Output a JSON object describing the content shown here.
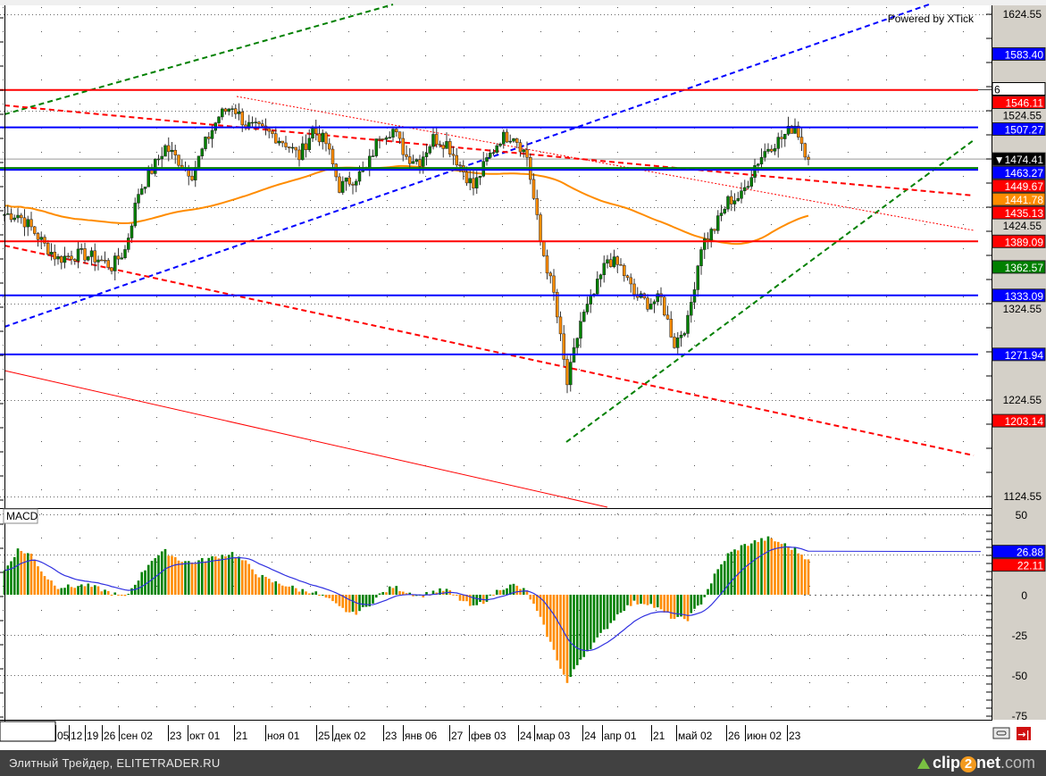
{
  "watermark": "Powered by XTick",
  "macd_label": "MACD",
  "footer": {
    "left": "Элитный Трейдер, ELITETRADER.RU",
    "brand_a": "clip",
    "brand_b": "2",
    "brand_c": "net",
    "brand_d": ".com"
  },
  "colors": {
    "up": "#008000",
    "down": "#ff8c00",
    "blue": "#0000ff",
    "red": "#ff0000",
    "green": "#008000",
    "orange": "#ff8c00",
    "axis_bg": "#d4d0c8",
    "footer_bg": "#414141"
  },
  "chart_data": [
    {
      "type": "candlestick",
      "title": "",
      "ylim": [
        1105,
        1640
      ],
      "y_ticks": [
        "1624.55",
        "1524.55",
        "1424.55",
        "1324.55",
        "1224.55",
        "1124.55"
      ],
      "x_tick_labels": [
        "05",
        "12",
        "19",
        "26",
        "сен 02",
        "23",
        "окт 01",
        "21",
        "ноя 01",
        "25",
        "дек 02",
        "23",
        "янв 06",
        "27",
        "фев 03",
        "24",
        "мар 03",
        "24",
        "апр 01",
        "21",
        "май 02",
        "26",
        "июн 02",
        "23"
      ],
      "closes_weekly": [
        1417,
        1417,
        1403,
        1385,
        1371,
        1375,
        1375,
        1371,
        1363,
        1380,
        1440,
        1463,
        1487,
        1473,
        1459,
        1491,
        1519,
        1530,
        1510,
        1505,
        1500,
        1491,
        1477,
        1505,
        1491,
        1445,
        1454,
        1463,
        1500,
        1505,
        1477,
        1473,
        1496,
        1491,
        1468,
        1445,
        1473,
        1496,
        1500,
        1477,
        1389,
        1334,
        1241,
        1306,
        1334,
        1371,
        1362,
        1334,
        1325,
        1329,
        1283,
        1306,
        1385,
        1403,
        1431,
        1436,
        1468,
        1487,
        1496,
        1510,
        1474
      ],
      "level_lines": [
        {
          "value": 1583.4,
          "label": "1583.40",
          "color": "#0000ff",
          "line": false
        },
        {
          "value": 1546.11,
          "label": "1546.11",
          "color": "#ff0000",
          "line": true
        },
        {
          "value": 1507.27,
          "label": "1507.27",
          "color": "#0000ff",
          "line": true
        },
        {
          "value": 1474.41,
          "label": "▼1474.41",
          "color": "#000000",
          "line": false
        },
        {
          "value": 1463.27,
          "label": "1463.27",
          "color": "#0000ff",
          "line": true
        },
        {
          "value": 1449.67,
          "label": "1449.67",
          "color": "#ff0000",
          "line": false
        },
        {
          "value": 1435.13,
          "label": "1435.13",
          "color": "#ff0000",
          "line": false
        },
        {
          "value": 1441.78,
          "label": "1441.78",
          "color": "#ff8c00",
          "line": false
        },
        {
          "value": 1389.09,
          "label": "1389.09",
          "color": "#ff0000",
          "line": true
        },
        {
          "value": 1362.57,
          "label": "1362.57",
          "color": "#008000",
          "line": false
        },
        {
          "value": 1333.09,
          "label": "1333.09",
          "color": "#0000ff",
          "line": true
        },
        {
          "value": 1271.94,
          "label": "1271.94",
          "color": "#0000ff",
          "line": true
        },
        {
          "value": 1203.14,
          "label": "1203.14",
          "color": "#ff0000",
          "line": false
        }
      ],
      "cursor_label": "6"
    },
    {
      "type": "bar",
      "title": "MACD",
      "ylim": [
        -78,
        56
      ],
      "y_ticks": [
        "50",
        "0",
        "-25",
        "-50",
        "-75"
      ],
      "histogram_weekly": [
        15,
        28,
        25,
        12,
        5,
        5,
        6,
        4,
        1,
        -2,
        10,
        22,
        27,
        22,
        20,
        22,
        24,
        26,
        20,
        12,
        8,
        6,
        3,
        2,
        -2,
        -8,
        -12,
        -8,
        0,
        5,
        2,
        -1,
        2,
        3,
        -3,
        -8,
        -3,
        4,
        6,
        2,
        -15,
        -35,
        -55,
        -40,
        -30,
        -20,
        -10,
        -5,
        -5,
        -10,
        -15,
        -15,
        -5,
        12,
        25,
        30,
        33,
        35,
        32,
        28,
        22
      ],
      "labels": [
        {
          "label": "26.88",
          "color": "#0000ff",
          "value": 26.88
        },
        {
          "label": "22.11",
          "color": "#ff0000",
          "value": 22.11
        }
      ]
    }
  ]
}
